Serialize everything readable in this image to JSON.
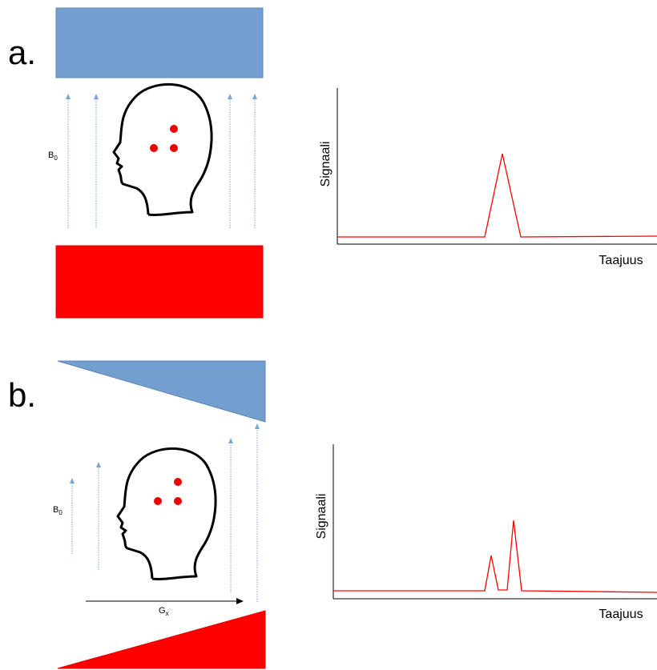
{
  "panels": [
    {
      "label": "a.",
      "field_symbol": "B",
      "field_subscript": "0",
      "y_axis_label": "Signaali",
      "x_axis_label": "Taajuus"
    },
    {
      "label": "b.",
      "field_symbol": "B",
      "field_subscript": "0",
      "y_axis_label": "Signaali",
      "x_axis_label": "Taajuus",
      "gradient_symbol": "G",
      "gradient_subscript": "x"
    }
  ]
}
